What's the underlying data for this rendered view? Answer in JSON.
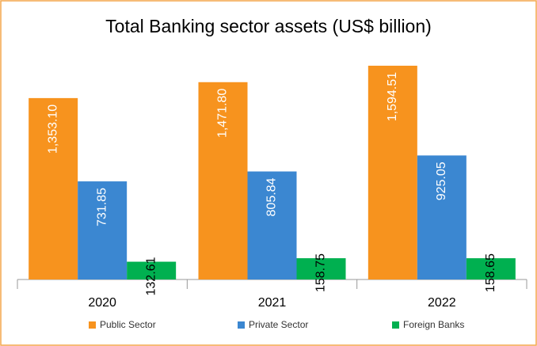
{
  "chart_data": {
    "type": "bar",
    "title": "Total Banking sector assets (US$ billion)",
    "categories": [
      "2020",
      "2021",
      "2022"
    ],
    "series": [
      {
        "name": "Public Sector",
        "color": "#f7931e",
        "values": [
          1353.1,
          1471.8,
          1594.51
        ],
        "value_labels": [
          "1,353.10",
          "1,471.80",
          "1,594.51"
        ]
      },
      {
        "name": "Private Sector",
        "color": "#3b87d1",
        "values": [
          731.85,
          805.84,
          925.05
        ],
        "value_labels": [
          "731.85",
          "805.84",
          "925.05"
        ]
      },
      {
        "name": "Foreign Banks",
        "color": "#00b050",
        "values": [
          132.61,
          158.75,
          158.65
        ],
        "value_labels": [
          "132.61",
          "158.75",
          "158.65"
        ]
      }
    ]
  }
}
